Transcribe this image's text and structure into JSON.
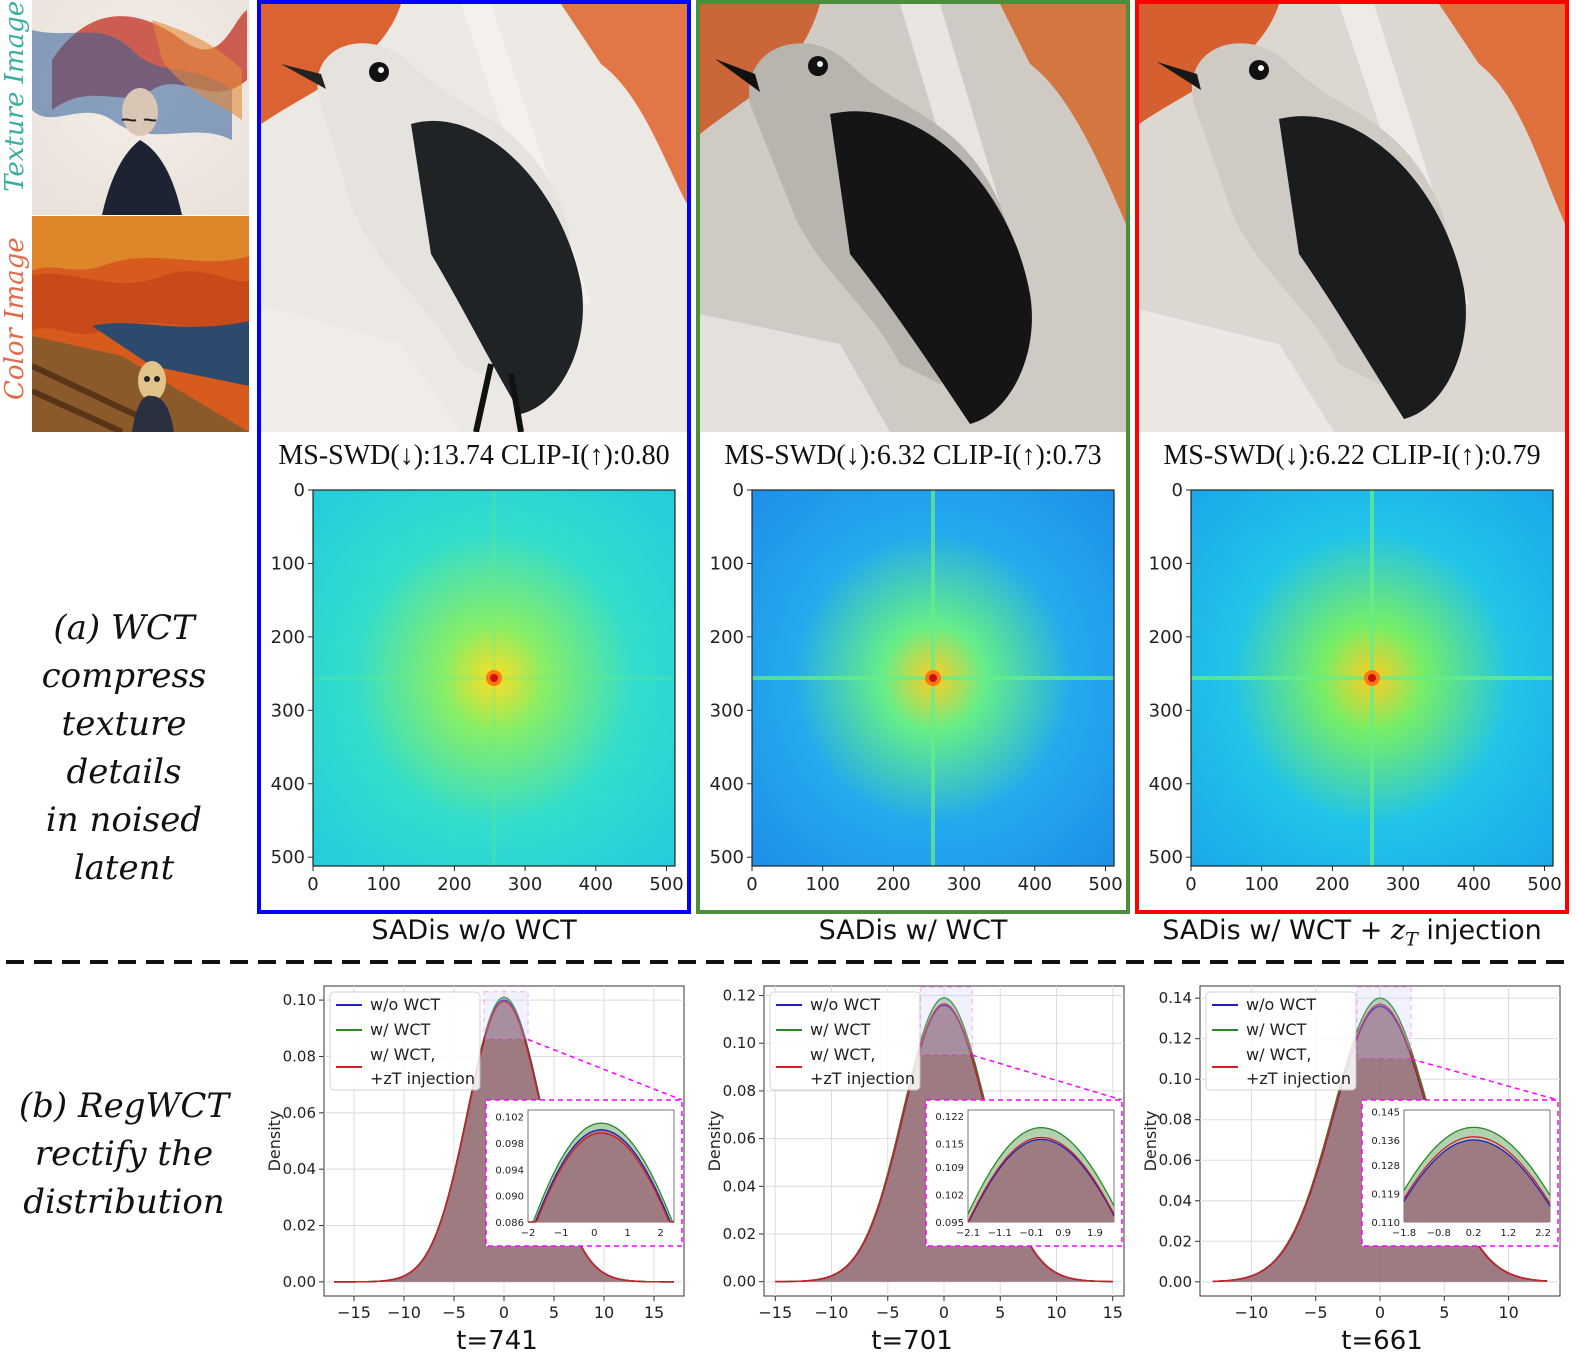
{
  "inputs": {
    "texture_label": "Texture Image",
    "color_label": "Color Image",
    "texture_color": "#3aaea0",
    "color_color": "#e06a4a"
  },
  "section_a": {
    "caption": "(a) WCT\ncompress\ntexture details\nin noised latent",
    "panels": [
      {
        "border_color": "#0000ff",
        "metric": "MS-SWD(↓):13.74 CLIP-I(↑):0.80",
        "title": "SADis w/o WCT"
      },
      {
        "border_color": "#4a8f3a",
        "metric": "MS-SWD(↓):6.32 CLIP-I(↑):0.73",
        "title": "SADis w/ WCT"
      },
      {
        "border_color": "#ff0000",
        "metric": "MS-SWD(↓):6.22 CLIP-I(↑):0.79",
        "title_prefix": "SADis w/ WCT + ",
        "title_math": "z",
        "title_sub": "T",
        "title_suffix": " injection"
      }
    ],
    "spectrum_ticks": [
      "0",
      "100",
      "200",
      "300",
      "400",
      "500"
    ]
  },
  "section_b": {
    "caption": "(b) RegWCT\nrectify the\ndistribution",
    "ylabel": "Density",
    "legend": [
      "w/o WCT",
      "w/ WCT",
      "w/ WCT,",
      "+zT injection"
    ],
    "series_colors": {
      "w/o WCT": "#2020c0",
      "w/ WCT": "#2a8a2a",
      "w/ WCT, +zT injection": "#d02020"
    },
    "zoom_color": "#ff00ff"
  },
  "chart_data": [
    {
      "type": "area",
      "title": "t=741",
      "ylabel": "Density",
      "xlim": [
        -18,
        18
      ],
      "ylim": [
        -0.005,
        0.105
      ],
      "x_ticks": [
        -15,
        -10,
        -5,
        0,
        5,
        10,
        15
      ],
      "y_ticks": [
        0.0,
        0.02,
        0.04,
        0.06,
        0.08,
        0.1
      ],
      "x_tick_labels": [
        "−15",
        "−10",
        "−5",
        "0",
        "5",
        "10",
        "15"
      ],
      "y_tick_labels": [
        "0.00",
        "0.02",
        "0.04",
        "0.06",
        "0.08",
        "0.10"
      ],
      "peak": 0.1,
      "peak_wct": 0.101,
      "peak_reg": 0.0995,
      "inset": {
        "xlim": [
          -2,
          2.4
        ],
        "ylim": [
          0.086,
          0.103
        ],
        "x_ticks": [
          -2,
          -1,
          0,
          1,
          2
        ],
        "y_ticks": [
          0.086,
          0.09,
          0.094,
          0.098,
          0.102
        ],
        "x_tick_labels": [
          "−2",
          "−1",
          "0",
          "1",
          "2"
        ],
        "y_tick_labels": [
          "0.086",
          "0.090",
          "0.094",
          "0.098",
          "0.102"
        ]
      }
    },
    {
      "type": "area",
      "title": "t=701",
      "ylabel": "Density",
      "xlim": [
        -16,
        16
      ],
      "ylim": [
        -0.006,
        0.124
      ],
      "x_ticks": [
        -15,
        -10,
        -5,
        0,
        5,
        10,
        15
      ],
      "y_ticks": [
        0.0,
        0.02,
        0.04,
        0.06,
        0.08,
        0.1,
        0.12
      ],
      "x_tick_labels": [
        "−15",
        "−10",
        "−5",
        "0",
        "5",
        "10",
        "15"
      ],
      "y_tick_labels": [
        "0.00",
        "0.02",
        "0.04",
        "0.06",
        "0.08",
        "0.10",
        "0.12"
      ],
      "peak": 0.116,
      "peak_wct": 0.119,
      "peak_reg": 0.1165,
      "inset": {
        "xlim": [
          -2.1,
          2.5
        ],
        "ylim": [
          0.095,
          0.1235
        ],
        "x_ticks": [
          -2.1,
          -1.1,
          -0.1,
          0.9,
          1.9
        ],
        "y_ticks": [
          0.095,
          0.102,
          0.109,
          0.115,
          0.122
        ],
        "x_tick_labels": [
          "−2.1",
          "−1.1",
          "−0.1",
          "0.9",
          "1.9"
        ],
        "y_tick_labels": [
          "0.095",
          "0.102",
          "0.109",
          "0.115",
          "0.122"
        ]
      }
    },
    {
      "type": "area",
      "title": "t=661",
      "ylabel": "Density",
      "xlim": [
        -14,
        14
      ],
      "ylim": [
        -0.007,
        0.146
      ],
      "x_ticks": [
        -10,
        -5,
        0,
        5,
        10
      ],
      "y_ticks": [
        0.0,
        0.02,
        0.04,
        0.06,
        0.08,
        0.1,
        0.12,
        0.14
      ],
      "x_tick_labels": [
        "−10",
        "−5",
        "0",
        "5",
        "10"
      ],
      "y_tick_labels": [
        "0.00",
        "0.02",
        "0.04",
        "0.06",
        "0.08",
        "0.10",
        "0.12",
        "0.14"
      ],
      "peak": 0.136,
      "peak_wct": 0.14,
      "peak_reg": 0.137,
      "inset": {
        "xlim": [
          -1.8,
          2.4
        ],
        "ylim": [
          0.11,
          0.1455
        ],
        "x_ticks": [
          -1.8,
          -0.8,
          0.2,
          1.2,
          2.2
        ],
        "y_ticks": [
          0.11,
          0.119,
          0.128,
          0.136,
          0.145
        ],
        "x_tick_labels": [
          "−1.8",
          "−0.8",
          "0.2",
          "1.2",
          "2.2"
        ],
        "y_tick_labels": [
          "0.110",
          "0.119",
          "0.128",
          "0.136",
          "0.145"
        ]
      }
    }
  ]
}
